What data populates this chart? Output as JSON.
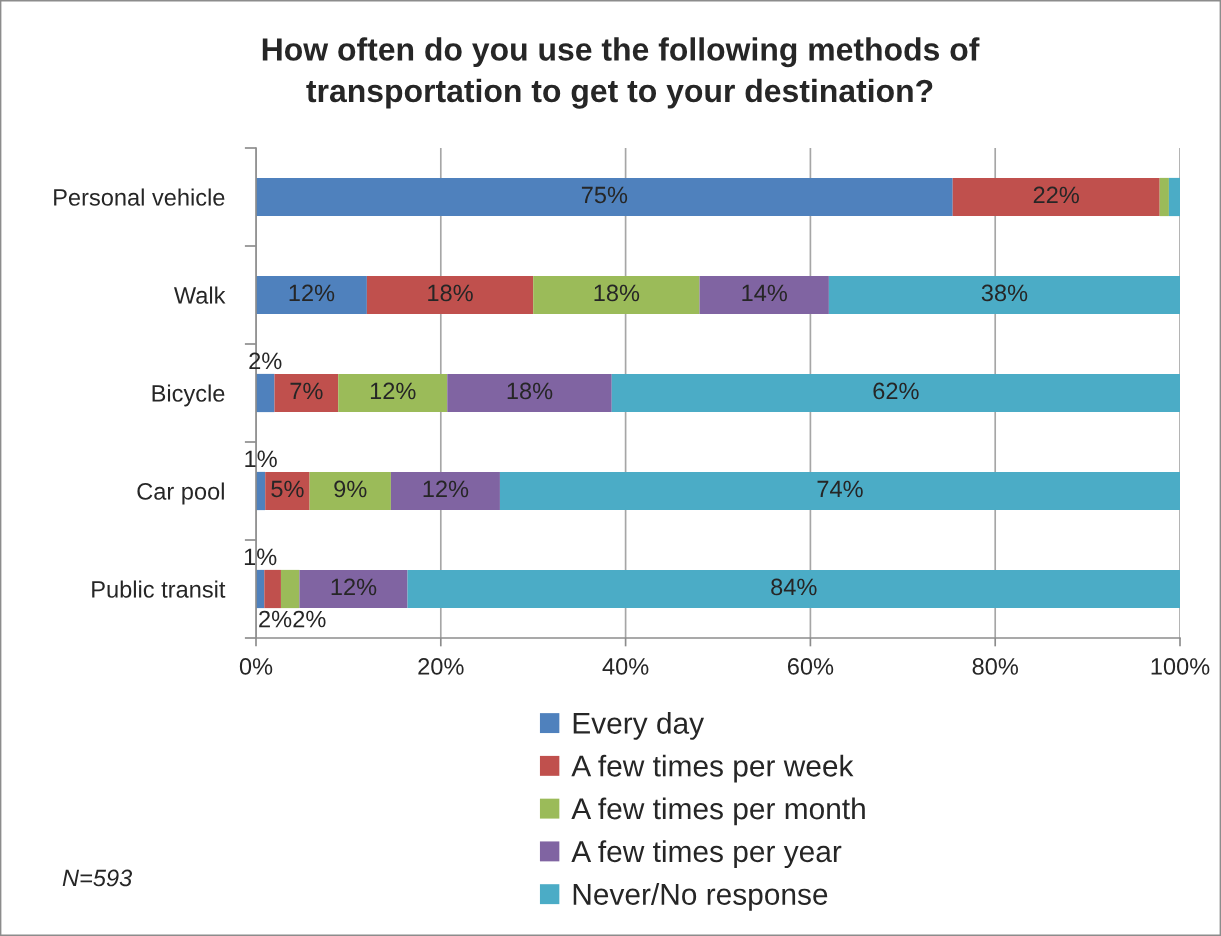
{
  "chart_data": {
    "type": "bar",
    "orientation": "horizontal",
    "stacked": true,
    "title": "How often do you use the following methods of\ntransportation to get to your destination?",
    "categories": [
      "Personal vehicle",
      "Walk",
      "Bicycle",
      "Car pool",
      "Public transit"
    ],
    "series": [
      {
        "name": "Every day",
        "color": "#4f81bd",
        "values": [
          75.4,
          12,
          2.0,
          1.0,
          0.9
        ],
        "value_labels": [
          "75%",
          "12%",
          "2%",
          "1%",
          "1%"
        ]
      },
      {
        "name": "A few times per week",
        "color": "#c0504d",
        "values": [
          22.4,
          18,
          6.9,
          4.8,
          1.8
        ],
        "value_labels": [
          "22%",
          "18%",
          "7%",
          "5%",
          "2%"
        ]
      },
      {
        "name": "A few times per month",
        "color": "#9bbb59",
        "values": [
          1.0,
          18,
          11.8,
          8.8,
          2.0
        ],
        "value_labels": [
          null,
          "18%",
          "12%",
          "9%",
          "2%"
        ]
      },
      {
        "name": "A few times per year",
        "color": "#8064a2",
        "values": [
          null,
          14,
          17.8,
          11.8,
          11.7
        ],
        "value_labels": [
          null,
          "14%",
          "18%",
          "12%",
          "12%"
        ]
      },
      {
        "name": "Never/No response",
        "color": "#4bacc6",
        "values": [
          1.2,
          38,
          61.5,
          73.6,
          83.6
        ],
        "value_labels": [
          null,
          "38%",
          "62%",
          "74%",
          "84%"
        ]
      }
    ],
    "xlim": [
      0,
      100
    ],
    "xticks": [
      {
        "value": 0,
        "label": "0%"
      },
      {
        "value": 20,
        "label": "20%"
      },
      {
        "value": 40,
        "label": "40%"
      },
      {
        "value": 60,
        "label": "60%"
      },
      {
        "value": 80,
        "label": "80%"
      },
      {
        "value": 100,
        "label": "100%"
      }
    ],
    "grid": "x",
    "legend": "bottom",
    "annotations": [
      "N=593"
    ]
  }
}
